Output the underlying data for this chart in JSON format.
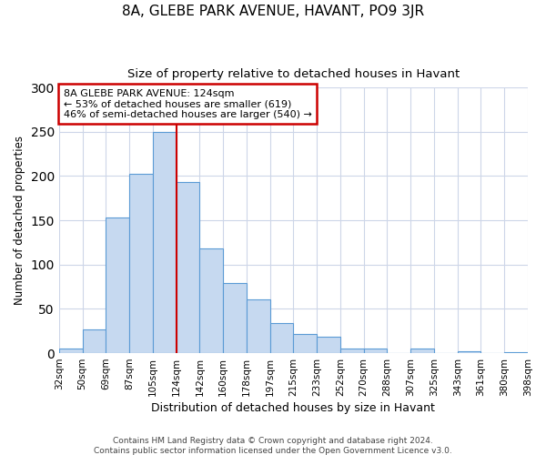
{
  "title": "8A, GLEBE PARK AVENUE, HAVANT, PO9 3JR",
  "subtitle": "Size of property relative to detached houses in Havant",
  "xlabel": "Distribution of detached houses by size in Havant",
  "ylabel": "Number of detached properties",
  "bin_labels": [
    "32sqm",
    "50sqm",
    "69sqm",
    "87sqm",
    "105sqm",
    "124sqm",
    "142sqm",
    "160sqm",
    "178sqm",
    "197sqm",
    "215sqm",
    "233sqm",
    "252sqm",
    "270sqm",
    "288sqm",
    "307sqm",
    "325sqm",
    "343sqm",
    "361sqm",
    "380sqm",
    "398sqm"
  ],
  "bar_values": [
    5,
    27,
    153,
    202,
    250,
    193,
    118,
    79,
    61,
    34,
    22,
    19,
    5,
    5,
    0,
    5,
    0,
    2,
    0,
    1
  ],
  "bar_color": "#c6d9f0",
  "bar_edge_color": "#5b9bd5",
  "property_line_x": 5,
  "annotation_line1": "8A GLEBE PARK AVENUE: 124sqm",
  "annotation_line2": "← 53% of detached houses are smaller (619)",
  "annotation_line3": "46% of semi-detached houses are larger (540) →",
  "annotation_box_color": "#ffffff",
  "annotation_box_edge": "#cc0000",
  "property_vline_color": "#cc0000",
  "ylim": [
    0,
    300
  ],
  "yticks": [
    0,
    50,
    100,
    150,
    200,
    250,
    300
  ],
  "footer1": "Contains HM Land Registry data © Crown copyright and database right 2024.",
  "footer2": "Contains public sector information licensed under the Open Government Licence v3.0.",
  "background_color": "#ffffff",
  "grid_color": "#cdd6e8"
}
